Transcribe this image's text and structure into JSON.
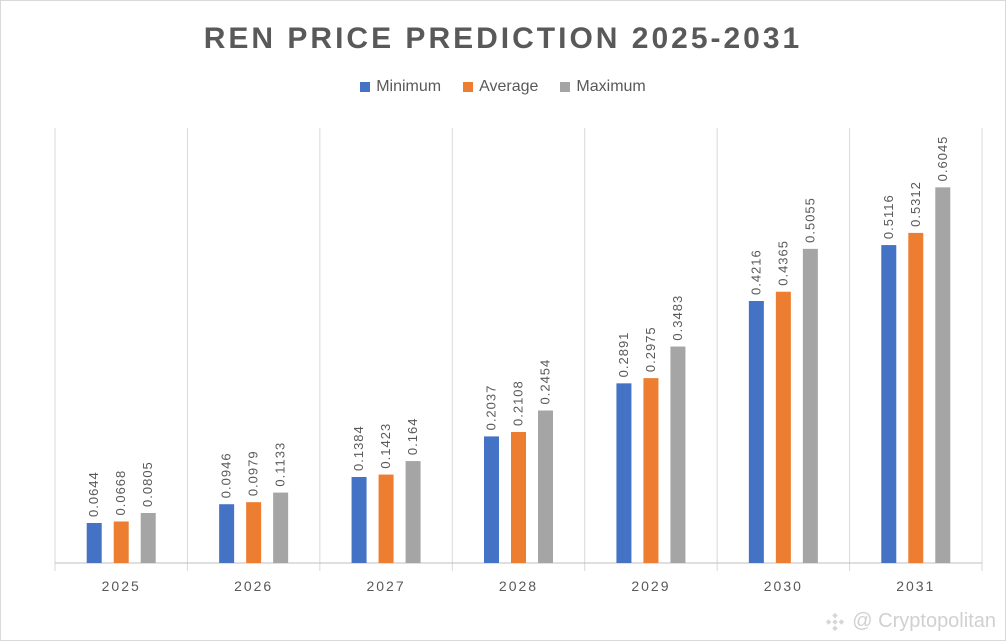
{
  "chart_data": {
    "type": "bar",
    "title": "REN PRICE PREDICTION 2025-2031",
    "categories": [
      "2025",
      "2026",
      "2027",
      "2028",
      "2029",
      "2030",
      "2031"
    ],
    "series": [
      {
        "name": "Minimum",
        "color": "#4472c4",
        "values": [
          0.0644,
          0.0946,
          0.1384,
          0.2037,
          0.2891,
          0.4216,
          0.5116
        ],
        "labels": [
          "0.0644",
          "0.0946",
          "0.1384",
          "0.2037",
          "0.2891",
          "0.4216",
          "0.5116"
        ]
      },
      {
        "name": "Average",
        "color": "#ed7d31",
        "values": [
          0.0668,
          0.0979,
          0.1423,
          0.2108,
          0.2975,
          0.4365,
          0.5312
        ],
        "labels": [
          "0.0668",
          "0.0979",
          "0.1423",
          "0.2108",
          "0.2975",
          "0.4365",
          "0.5312"
        ]
      },
      {
        "name": "Maximum",
        "color": "#a5a5a5",
        "values": [
          0.0805,
          0.1133,
          0.164,
          0.2454,
          0.3483,
          0.5055,
          0.6045
        ],
        "labels": [
          "0.0805",
          "0.1133",
          "0.164",
          "0.2454",
          "0.3483",
          "0.5055",
          "0.6045"
        ]
      }
    ],
    "xlabel": "",
    "ylabel": "",
    "ylim": [
      0,
      0.7
    ],
    "grid": "vertical category separators",
    "legend": "top-center",
    "data_labels": "rotated, above bars"
  },
  "watermark": {
    "text": "@ Cryptopolitan",
    "icon": "binance-logo-icon"
  }
}
